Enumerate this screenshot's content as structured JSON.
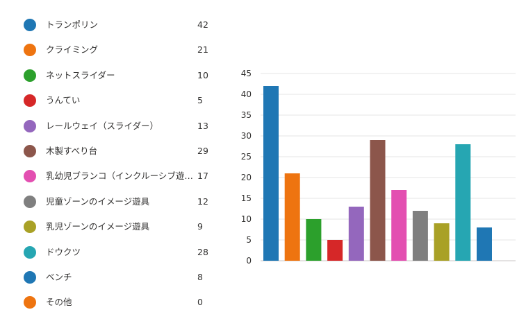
{
  "chart_data": {
    "type": "bar",
    "categories": [
      "トランポリン",
      "クライミング",
      "ネットスライダー",
      "うんてい",
      "レールウェイ（スライダー）",
      "木製すべり台",
      "乳幼児ブランコ（インクルーシブ遊具...",
      "児童ゾーンのイメージ遊具",
      "乳児ゾーンのイメージ遊具",
      "ドウクツ",
      "ベンチ",
      "その他"
    ],
    "values": [
      42,
      21,
      10,
      5,
      13,
      29,
      17,
      12,
      9,
      28,
      8,
      0
    ],
    "colors": [
      "#1f77b4",
      "#ee7410",
      "#2ca02c",
      "#d62728",
      "#9467bd",
      "#8c564b",
      "#e34fb1",
      "#7f7f7f",
      "#a9a126",
      "#26a6b2",
      "#1f77b4",
      "#ee7410"
    ],
    "bars_shown": 11,
    "ylim": [
      0,
      45
    ],
    "yticks": [
      0,
      5,
      10,
      15,
      20,
      25,
      30,
      35,
      40,
      45
    ],
    "grid": true,
    "legend_position": "left"
  }
}
